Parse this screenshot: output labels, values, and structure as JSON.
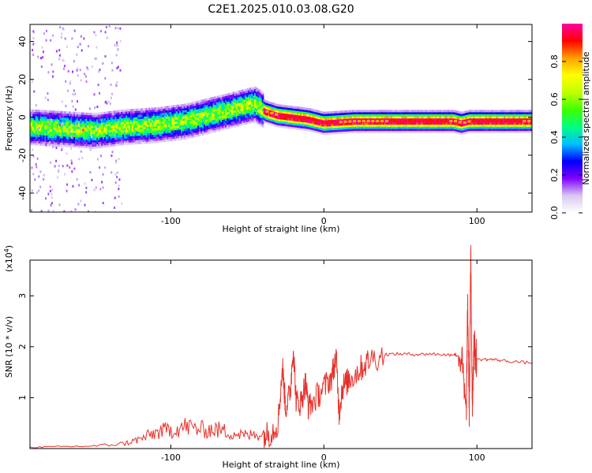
{
  "title": "C2E1.2025.010.03.08.G20",
  "chart_data": [
    {
      "type": "heatmap",
      "xlabel": "Height of straight line (km)",
      "ylabel": "Frequency (Hz)",
      "xlim": [
        -192,
        136
      ],
      "ylim": [
        -50,
        49
      ],
      "xticks": [
        -100,
        0,
        100
      ],
      "yticks": [
        -40,
        -20,
        0,
        20,
        40
      ],
      "colorbar": {
        "label": "Normalized spectral amplitude",
        "range": [
          0,
          1
        ],
        "ticks": [
          "0.0",
          "0.2",
          "0.4",
          "0.6",
          "0.8"
        ],
        "colors": [
          "#ffffff",
          "#d8c8f0",
          "#8000ff",
          "#0000ff",
          "#00c0ff",
          "#00ff80",
          "#40ff00",
          "#c0ff00",
          "#ffff00",
          "#ffa000",
          "#ff0000",
          "#ff00a0"
        ]
      },
      "ridge": {
        "x": [
          -192,
          -170,
          -150,
          -130,
          -110,
          -90,
          -70,
          -55,
          -45,
          -38,
          -30,
          -20,
          -10,
          0,
          20,
          60,
          85,
          90,
          95,
          100,
          136
        ],
        "y": [
          -5,
          -6,
          -7,
          -5,
          -4,
          -2,
          2,
          5,
          7,
          3,
          1,
          0,
          -1,
          -3,
          -2,
          -2,
          -2,
          -3,
          -2,
          -2,
          -2
        ]
      }
    },
    {
      "type": "line",
      "xlabel": "Height of straight line (km)",
      "ylabel": "SNR (10 * v/v)",
      "yscale_label": "(x10^4)",
      "xlim": [
        -192,
        136
      ],
      "ylim": [
        0,
        3.7
      ],
      "xticks": [
        -100,
        0,
        100
      ],
      "yticks": [
        1,
        2,
        3
      ],
      "color": "#e8302a",
      "series": [
        {
          "x": [
            -192,
            -170,
            -150,
            -130,
            -120,
            -110,
            -100,
            -90,
            -80,
            -70,
            -60,
            -50,
            -40,
            -35,
            -30,
            -27,
            -25,
            -22,
            -20,
            -18,
            -15,
            -12,
            -10,
            -5,
            0,
            5,
            8,
            10,
            12,
            15,
            20,
            25,
            30,
            40,
            50,
            60,
            70,
            80,
            85,
            90,
            93,
            94,
            95,
            96,
            97,
            98,
            100,
            110,
            120,
            136
          ],
          "y": [
            0.02,
            0.03,
            0.04,
            0.08,
            0.15,
            0.25,
            0.3,
            0.35,
            0.3,
            0.3,
            0.25,
            0.2,
            0.25,
            0.3,
            0.5,
            1.6,
            0.8,
            1.1,
            2.0,
            0.9,
            0.9,
            1.3,
            0.8,
            1.0,
            1.2,
            1.4,
            1.8,
            0.7,
            1.2,
            1.3,
            1.45,
            1.6,
            1.75,
            1.85,
            1.86,
            1.85,
            1.86,
            1.84,
            1.85,
            1.8,
            0.6,
            2.8,
            0.8,
            3.7,
            0.9,
            2.0,
            1.75,
            1.75,
            1.72,
            1.68
          ]
        }
      ]
    }
  ]
}
